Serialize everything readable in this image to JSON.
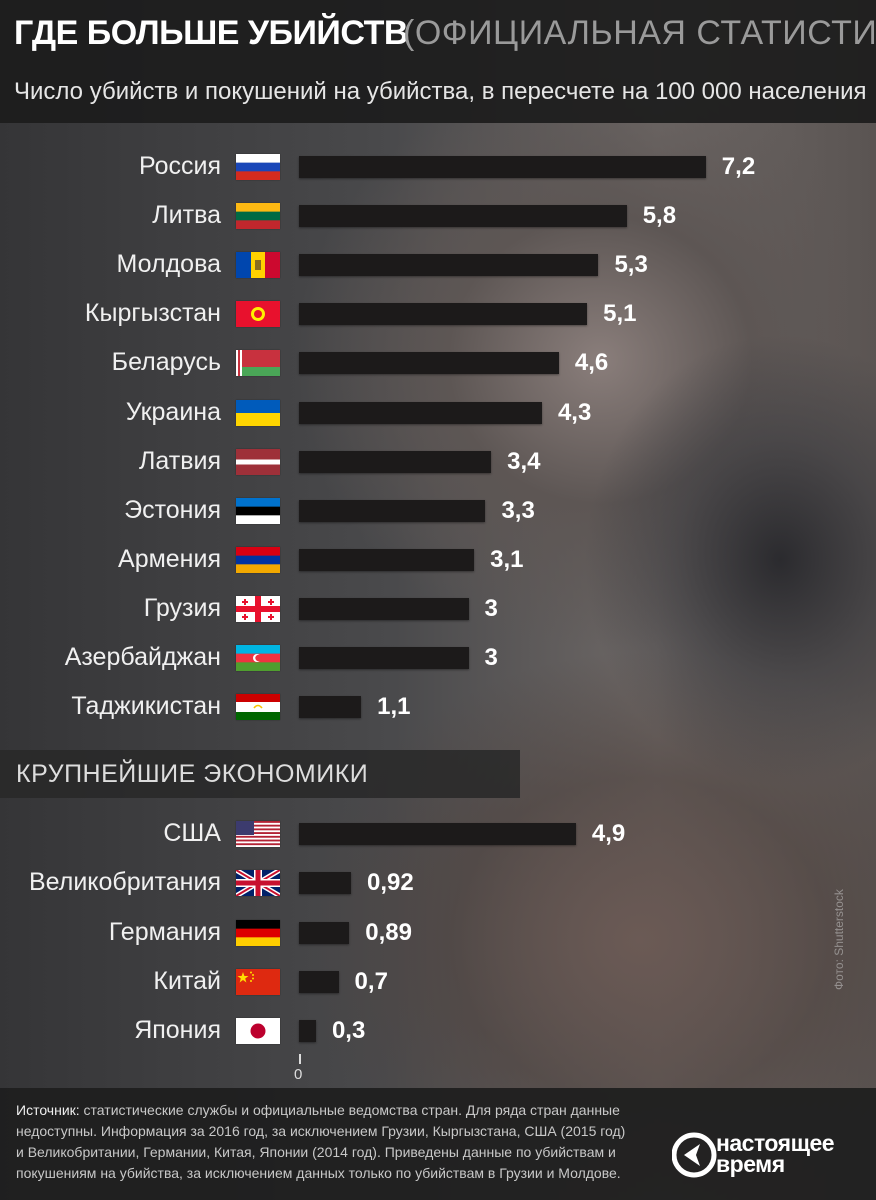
{
  "header": {
    "title": "ГДЕ БОЛЬШЕ УБИЙСТВ",
    "title_paren": "(ОФИЦИАЛЬНАЯ СТАТИСТИКА)",
    "subtitle": "Число убийств и покушений на убийства, в пересчете на 100 000 населения"
  },
  "section_label": "КРУПНЕЙШИЕ ЭКОНОМИКИ",
  "zero_label": "0",
  "photo_credit": "Фото: Shutterstock",
  "footer": {
    "source_label": "Источник:",
    "source_text": " статистические службы и официальные ведомства стран. Для ряда стран данные недоступны. Информация за 2016 год, за исключением Грузии, Кыргызстана, США (2015 год) и Великобритании, Германии, Китая, Японии (2014 год). Приведены данные по убийствам и покушениям на убийства, за исключением данных только по убийствам в Грузии и Молдове.",
    "logo_line1": "настоящее",
    "logo_line2": "время"
  },
  "colors": {
    "bar": "#1c1a1a",
    "text": "#ffffff"
  },
  "chart_data": [
    {
      "type": "bar",
      "orientation": "horizontal",
      "categories": [
        "Россия",
        "Литва",
        "Молдова",
        "Кыргызстан",
        "Беларусь",
        "Украина",
        "Латвия",
        "Эстония",
        "Армения",
        "Грузия",
        "Азербайджан",
        "Таджикистан"
      ],
      "values": [
        7.2,
        5.8,
        5.3,
        5.1,
        4.6,
        4.3,
        3.4,
        3.3,
        3.1,
        3,
        3,
        1.1
      ],
      "value_labels": [
        "7,2",
        "5,8",
        "5,3",
        "5,1",
        "4,6",
        "4,3",
        "3,4",
        "3,3",
        "3,1",
        "3",
        "3",
        "1,1"
      ],
      "flags": [
        "flag-russia",
        "flag-lithuania",
        "flag-moldova",
        "flag-kyrgyzstan",
        "flag-belarus",
        "flag-ukraine",
        "flag-latvia",
        "flag-estonia",
        "flag-armenia",
        "flag-georgia",
        "flag-azerbaijan",
        "flag-tajikistan"
      ]
    },
    {
      "type": "bar",
      "orientation": "horizontal",
      "categories": [
        "США",
        "Великобритания",
        "Германия",
        "Китай",
        "Япония"
      ],
      "values": [
        4.9,
        0.92,
        0.89,
        0.7,
        0.3
      ],
      "value_labels": [
        "4,9",
        "0,92",
        "0,89",
        "0,7",
        "0,3"
      ],
      "flags": [
        "flag-usa",
        "flag-uk",
        "flag-germany",
        "flag-china",
        "flag-japan"
      ]
    }
  ]
}
